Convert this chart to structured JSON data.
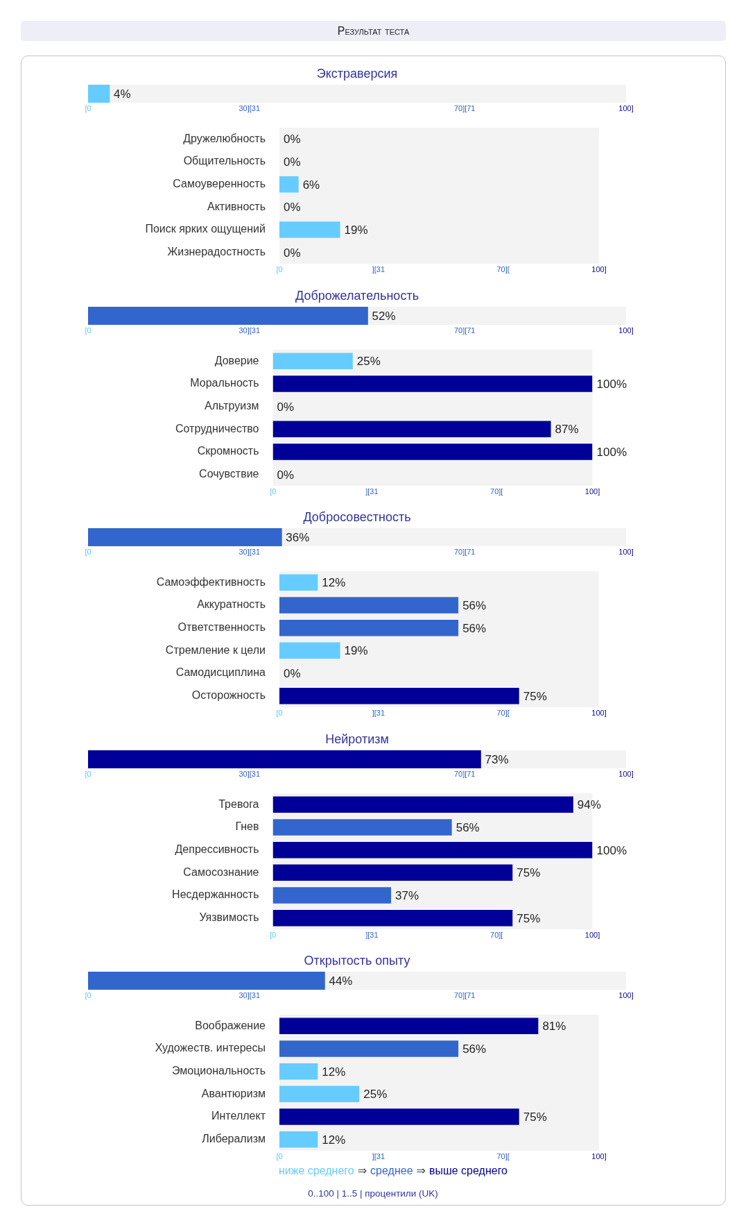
{
  "chart_data": [
    {
      "type": "other",
      "title": "Результат теста"
    },
    {
      "type": "bar",
      "orientation": "horizontal",
      "categories": [
        "Экстраверсия"
      ],
      "values": [
        4
      ],
      "color": "#66ccff",
      "value_labels": [
        "4%"
      ],
      "xlim": [
        0,
        100
      ],
      "xticks": [
        {
          "value": 0,
          "label": "[0"
        },
        {
          "value": 30,
          "label": "30][31"
        },
        {
          "value": 70,
          "label": "70][71"
        },
        {
          "value": 100,
          "label": "100]"
        }
      ],
      "bands": [
        {
          "axis": "x",
          "from": 0,
          "to": 100,
          "color": "#f3f3f3"
        }
      ]
    },
    {
      "type": "bar",
      "orientation": "horizontal",
      "categories": [
        "Дружелюбность",
        "Общительность",
        "Самоуверенность",
        "Активность",
        "Поиск ярких ощущений",
        "Жизнерадостность"
      ],
      "values": [
        0,
        0,
        6,
        0,
        19,
        0
      ],
      "colors": [
        "#66ccff",
        "#66ccff",
        "#66ccff",
        "#66ccff",
        "#66ccff",
        "#66ccff"
      ],
      "value_labels": [
        "0%",
        "0%",
        "6%",
        "0%",
        "19%",
        "0%"
      ],
      "xlim": [
        0,
        100
      ],
      "xticks": [
        {
          "value": 0,
          "label": "[0"
        },
        {
          "value": 31,
          "label": "][31"
        },
        {
          "value": 70,
          "label": "70]["
        },
        {
          "value": 100,
          "label": "100]"
        }
      ],
      "bands": [
        {
          "axis": "x",
          "from": 0,
          "to": 100,
          "color": "#f3f3f3"
        }
      ]
    },
    {
      "type": "bar",
      "orientation": "horizontal",
      "categories": [
        "Доброжелательность"
      ],
      "values": [
        52
      ],
      "color": "#3366cc",
      "value_labels": [
        "52%"
      ],
      "xlim": [
        0,
        100
      ],
      "xticks": [
        {
          "value": 0,
          "label": "[0"
        },
        {
          "value": 30,
          "label": "30][31"
        },
        {
          "value": 70,
          "label": "70][71"
        },
        {
          "value": 100,
          "label": "100]"
        }
      ],
      "bands": [
        {
          "axis": "x",
          "from": 0,
          "to": 100,
          "color": "#f3f3f3"
        }
      ]
    },
    {
      "type": "bar",
      "orientation": "horizontal",
      "categories": [
        "Доверие",
        "Моральность",
        "Альтруизм",
        "Сотрудничество",
        "Скромность",
        "Сочувствие"
      ],
      "values": [
        25,
        100,
        0,
        87,
        100,
        0
      ],
      "colors": [
        "#66ccff",
        "#000099",
        "#66ccff",
        "#000099",
        "#000099",
        "#66ccff"
      ],
      "value_labels": [
        "25%",
        "100%",
        "0%",
        "87%",
        "100%",
        "0%"
      ],
      "xlim": [
        0,
        100
      ],
      "xticks": [
        {
          "value": 0,
          "label": "[0"
        },
        {
          "value": 31,
          "label": "][31"
        },
        {
          "value": 70,
          "label": "70]["
        },
        {
          "value": 100,
          "label": "100]"
        }
      ],
      "bands": [
        {
          "axis": "x",
          "from": 0,
          "to": 100,
          "color": "#f3f3f3"
        }
      ]
    },
    {
      "type": "bar",
      "orientation": "horizontal",
      "categories": [
        "Добросовестность"
      ],
      "values": [
        36
      ],
      "color": "#3366cc",
      "value_labels": [
        "36%"
      ],
      "xlim": [
        0,
        100
      ],
      "xticks": [
        {
          "value": 0,
          "label": "[0"
        },
        {
          "value": 30,
          "label": "30][31"
        },
        {
          "value": 70,
          "label": "70][71"
        },
        {
          "value": 100,
          "label": "100]"
        }
      ],
      "bands": [
        {
          "axis": "x",
          "from": 0,
          "to": 100,
          "color": "#f3f3f3"
        }
      ]
    },
    {
      "type": "bar",
      "orientation": "horizontal",
      "categories": [
        "Самоэффективность",
        "Аккуратность",
        "Ответственность",
        "Стремление к цели",
        "Самодисциплина",
        "Осторожность"
      ],
      "values": [
        12,
        56,
        56,
        19,
        0,
        75
      ],
      "colors": [
        "#66ccff",
        "#3366cc",
        "#3366cc",
        "#66ccff",
        "#66ccff",
        "#000099"
      ],
      "value_labels": [
        "12%",
        "56%",
        "56%",
        "19%",
        "0%",
        "75%"
      ],
      "xlim": [
        0,
        100
      ],
      "xticks": [
        {
          "value": 0,
          "label": "[0"
        },
        {
          "value": 31,
          "label": "][31"
        },
        {
          "value": 70,
          "label": "70]["
        },
        {
          "value": 100,
          "label": "100]"
        }
      ],
      "bands": [
        {
          "axis": "x",
          "from": 0,
          "to": 100,
          "color": "#f3f3f3"
        }
      ]
    },
    {
      "type": "bar",
      "orientation": "horizontal",
      "categories": [
        "Нейротизм"
      ],
      "values": [
        73
      ],
      "color": "#000099",
      "value_labels": [
        "73%"
      ],
      "xlim": [
        0,
        100
      ],
      "xticks": [
        {
          "value": 0,
          "label": "[0"
        },
        {
          "value": 30,
          "label": "30][31"
        },
        {
          "value": 70,
          "label": "70][71"
        },
        {
          "value": 100,
          "label": "100]"
        }
      ],
      "bands": [
        {
          "axis": "x",
          "from": 0,
          "to": 100,
          "color": "#f3f3f3"
        }
      ]
    },
    {
      "type": "bar",
      "orientation": "horizontal",
      "categories": [
        "Тревога",
        "Гнев",
        "Депрессивность",
        "Самосознание",
        "Несдержанность",
        "Уязвимость"
      ],
      "values": [
        94,
        56,
        100,
        75,
        37,
        75
      ],
      "colors": [
        "#000099",
        "#3366cc",
        "#000099",
        "#000099",
        "#3366cc",
        "#000099"
      ],
      "value_labels": [
        "94%",
        "56%",
        "100%",
        "75%",
        "37%",
        "75%"
      ],
      "xlim": [
        0,
        100
      ],
      "xticks": [
        {
          "value": 0,
          "label": "[0"
        },
        {
          "value": 31,
          "label": "][31"
        },
        {
          "value": 70,
          "label": "70]["
        },
        {
          "value": 100,
          "label": "100]"
        }
      ],
      "bands": [
        {
          "axis": "x",
          "from": 0,
          "to": 100,
          "color": "#f3f3f3"
        }
      ]
    },
    {
      "type": "bar",
      "orientation": "horizontal",
      "categories": [
        "Открытость опыту"
      ],
      "values": [
        44
      ],
      "color": "#3366cc",
      "value_labels": [
        "44%"
      ],
      "xlim": [
        0,
        100
      ],
      "xticks": [
        {
          "value": 0,
          "label": "[0"
        },
        {
          "value": 30,
          "label": "30][31"
        },
        {
          "value": 70,
          "label": "70][71"
        },
        {
          "value": 100,
          "label": "100]"
        }
      ],
      "bands": [
        {
          "axis": "x",
          "from": 0,
          "to": 100,
          "color": "#f3f3f3"
        }
      ]
    },
    {
      "type": "bar",
      "orientation": "horizontal",
      "categories": [
        "Воображение",
        "Художеств. интересы",
        "Эмоциональность",
        "Авантюризм",
        "Интеллект",
        "Либерализм"
      ],
      "values": [
        81,
        56,
        12,
        25,
        75,
        12
      ],
      "colors": [
        "#000099",
        "#3366cc",
        "#66ccff",
        "#66ccff",
        "#000099",
        "#66ccff"
      ],
      "value_labels": [
        "81%",
        "56%",
        "12%",
        "25%",
        "75%",
        "12%"
      ],
      "xlim": [
        0,
        100
      ],
      "xticks": [
        {
          "value": 0,
          "label": "[0"
        },
        {
          "value": 31,
          "label": "][31"
        },
        {
          "value": 70,
          "label": "70]["
        },
        {
          "value": 100,
          "label": "100]"
        }
      ],
      "bands": [
        {
          "axis": "x",
          "from": 0,
          "to": 100,
          "color": "#f3f3f3"
        }
      ]
    },
    {
      "type": "other",
      "categories": [
        "ниже среднего",
        "среднее",
        "выше среднего"
      ],
      "colors": [
        "#66ccff",
        "#3366cc",
        "#000099"
      ],
      "annotations": [
        "⇒",
        "⇒",
        "0..100 | 1..5 | процентили (UK)"
      ]
    }
  ]
}
